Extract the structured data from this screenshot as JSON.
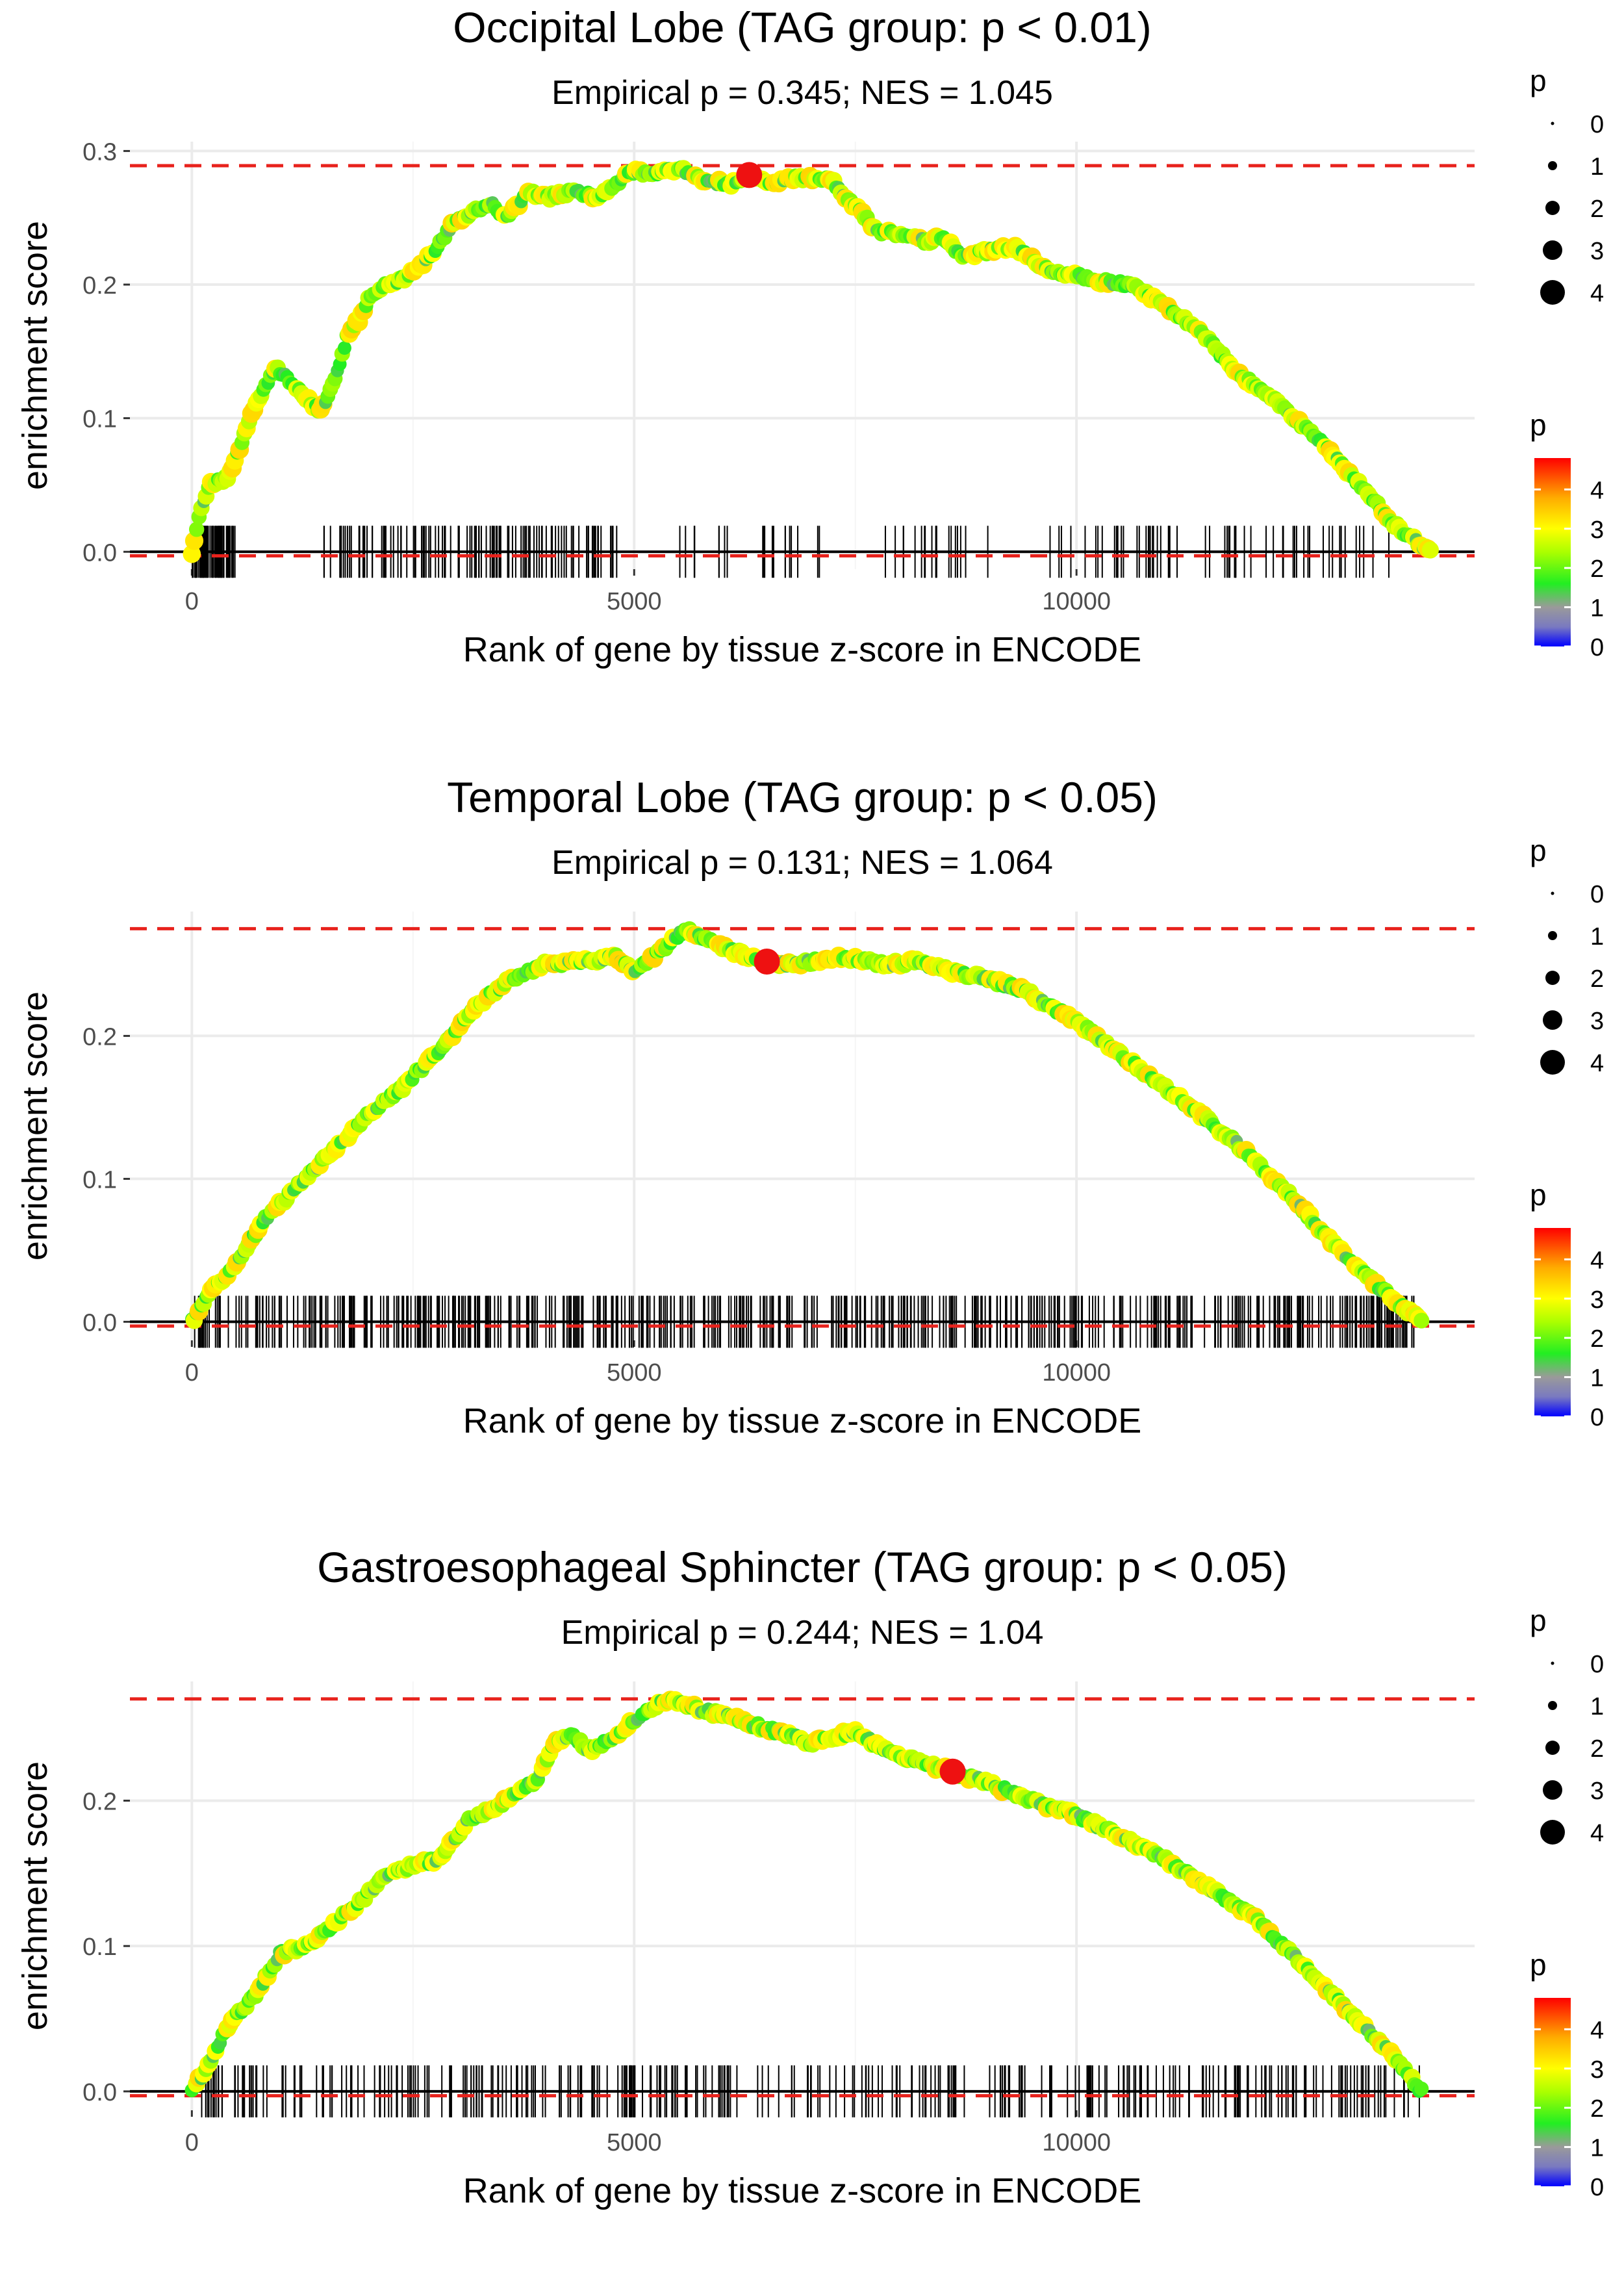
{
  "chart_data": [
    {
      "type": "line",
      "title": "Occipital Lobe (TAG group: p < 0.01)",
      "subtitle": "Empirical p = 0.345; NES = 1.045",
      "xlabel": "Rank of gene by tissue z-score in ENCODE",
      "ylabel": "enrichment score",
      "xlim": [
        -700,
        14500
      ],
      "ylim": [
        -0.013,
        0.307
      ],
      "x_ticks": [
        0,
        5000,
        10000
      ],
      "x_tick_labels": [
        "0",
        "5000",
        "10000"
      ],
      "y_ticks": [
        0.0,
        0.1,
        0.2,
        0.3
      ],
      "y_tick_labels": [
        "0.0",
        "0.1",
        "0.2",
        "0.3"
      ],
      "max_es": 0.289,
      "min_es": -0.003,
      "peak": {
        "x": 6300,
        "y": 0.282
      },
      "curve": [
        [
          0,
          0.0
        ],
        [
          100,
          0.03
        ],
        [
          200,
          0.05
        ],
        [
          400,
          0.055
        ],
        [
          500,
          0.07
        ],
        [
          650,
          0.1
        ],
        [
          800,
          0.12
        ],
        [
          950,
          0.138
        ],
        [
          1450,
          0.105
        ],
        [
          1600,
          0.125
        ],
        [
          1750,
          0.16
        ],
        [
          1900,
          0.175
        ],
        [
          2000,
          0.19
        ],
        [
          2200,
          0.2
        ],
        [
          2400,
          0.205
        ],
        [
          2600,
          0.215
        ],
        [
          2800,
          0.23
        ],
        [
          2950,
          0.245
        ],
        [
          3200,
          0.255
        ],
        [
          3400,
          0.26
        ],
        [
          3550,
          0.25
        ],
        [
          3700,
          0.26
        ],
        [
          3800,
          0.27
        ],
        [
          4000,
          0.265
        ],
        [
          4300,
          0.27
        ],
        [
          4600,
          0.265
        ],
        [
          4800,
          0.275
        ],
        [
          4950,
          0.285
        ],
        [
          5200,
          0.283
        ],
        [
          5500,
          0.287
        ],
        [
          5800,
          0.278
        ],
        [
          6100,
          0.275
        ],
        [
          6300,
          0.282
        ],
        [
          6600,
          0.276
        ],
        [
          6850,
          0.28
        ],
        [
          7200,
          0.28
        ],
        [
          7750,
          0.24
        ],
        [
          8050,
          0.238
        ],
        [
          8300,
          0.232
        ],
        [
          8500,
          0.236
        ],
        [
          8700,
          0.22
        ],
        [
          9000,
          0.225
        ],
        [
          9300,
          0.228
        ],
        [
          9700,
          0.21
        ],
        [
          10000,
          0.207
        ],
        [
          10300,
          0.202
        ],
        [
          10600,
          0.2
        ],
        [
          11000,
          0.185
        ],
        [
          11400,
          0.165
        ],
        [
          11800,
          0.135
        ],
        [
          12300,
          0.11
        ],
        [
          12800,
          0.08
        ],
        [
          13200,
          0.05
        ],
        [
          13600,
          0.02
        ],
        [
          14000,
          0.0
        ]
      ],
      "hit_ticks": [
        [
          0,
          500,
          60
        ],
        [
          1450,
          4850,
          110
        ],
        [
          5500,
          7200,
          20
        ],
        [
          7750,
          9000,
          20
        ],
        [
          9700,
          13800,
          60
        ]
      ],
      "size_legend": {
        "title": "p",
        "labels": [
          "0",
          "1",
          "2",
          "3",
          "4"
        ]
      },
      "color_legend": {
        "title": "p",
        "labels": [
          "4",
          "3",
          "2",
          "1",
          "0"
        ],
        "range": [
          0,
          4.8
        ]
      },
      "colors": {
        "reference": "#e8221c",
        "zero": "#000000",
        "line": "#b8b8b8",
        "peak": "#ee1111"
      }
    },
    {
      "type": "line",
      "title": "Temporal Lobe (TAG group: p < 0.05)",
      "subtitle": "Empirical p = 0.131; NES = 1.064",
      "xlabel": "Rank of gene by tissue z-score in ENCODE",
      "ylabel": "enrichment score",
      "xlim": [
        -700,
        14500
      ],
      "ylim": [
        -0.013,
        0.287
      ],
      "x_ticks": [
        0,
        5000,
        10000
      ],
      "x_tick_labels": [
        "0",
        "5000",
        "10000"
      ],
      "y_ticks": [
        0.0,
        0.1,
        0.2
      ],
      "y_tick_labels": [
        "0.0",
        "0.1",
        "0.2"
      ],
      "max_es": 0.275,
      "min_es": -0.003,
      "peak": {
        "x": 6500,
        "y": 0.252
      },
      "curve": [
        [
          0,
          0.0
        ],
        [
          200,
          0.02
        ],
        [
          500,
          0.04
        ],
        [
          800,
          0.07
        ],
        [
          1200,
          0.095
        ],
        [
          1600,
          0.12
        ],
        [
          2000,
          0.145
        ],
        [
          2400,
          0.165
        ],
        [
          2800,
          0.19
        ],
        [
          3200,
          0.22
        ],
        [
          3600,
          0.24
        ],
        [
          4000,
          0.25
        ],
        [
          4400,
          0.252
        ],
        [
          4800,
          0.255
        ],
        [
          5000,
          0.245
        ],
        [
          5300,
          0.26
        ],
        [
          5600,
          0.275
        ],
        [
          6000,
          0.262
        ],
        [
          6300,
          0.255
        ],
        [
          6600,
          0.25
        ],
        [
          7000,
          0.252
        ],
        [
          7400,
          0.255
        ],
        [
          7800,
          0.25
        ],
        [
          8200,
          0.252
        ],
        [
          8600,
          0.245
        ],
        [
          9000,
          0.24
        ],
        [
          9400,
          0.232
        ],
        [
          10000,
          0.21
        ],
        [
          10600,
          0.182
        ],
        [
          11200,
          0.155
        ],
        [
          11800,
          0.125
        ],
        [
          12400,
          0.09
        ],
        [
          12900,
          0.055
        ],
        [
          13400,
          0.025
        ],
        [
          13900,
          0.0
        ]
      ],
      "hit_ticks": [
        [
          0,
          13900,
          520
        ]
      ],
      "size_legend": {
        "title": "p",
        "labels": [
          "0",
          "1",
          "2",
          "3",
          "4"
        ]
      },
      "color_legend": {
        "title": "p",
        "labels": [
          "4",
          "3",
          "2",
          "1",
          "0"
        ],
        "range": [
          0,
          4.8
        ]
      },
      "colors": {
        "reference": "#e8221c",
        "zero": "#000000",
        "line": "#b8b8b8",
        "peak": "#ee1111"
      }
    },
    {
      "type": "line",
      "title": "Gastroesophageal Sphincter (TAG group: p < 0.05)",
      "subtitle": "Empirical p = 0.244; NES = 1.04",
      "xlabel": "Rank of gene by tissue z-score in ENCODE",
      "ylabel": "enrichment score",
      "xlim": [
        -700,
        14500
      ],
      "ylim": [
        -0.013,
        0.282
      ],
      "x_ticks": [
        0,
        5000,
        10000
      ],
      "x_tick_labels": [
        "0",
        "5000",
        "10000"
      ],
      "y_ticks": [
        0.0,
        0.1,
        0.2
      ],
      "y_tick_labels": [
        "0.0",
        "0.1",
        "0.2"
      ],
      "max_es": 0.27,
      "min_es": -0.003,
      "peak": {
        "x": 8600,
        "y": 0.22
      },
      "curve": [
        [
          0,
          0.0
        ],
        [
          200,
          0.02
        ],
        [
          400,
          0.045
        ],
        [
          700,
          0.065
        ],
        [
          1000,
          0.095
        ],
        [
          1300,
          0.1
        ],
        [
          1600,
          0.115
        ],
        [
          1900,
          0.13
        ],
        [
          2200,
          0.15
        ],
        [
          2500,
          0.155
        ],
        [
          2800,
          0.16
        ],
        [
          3100,
          0.185
        ],
        [
          3400,
          0.195
        ],
        [
          3700,
          0.205
        ],
        [
          3900,
          0.215
        ],
        [
          4100,
          0.24
        ],
        [
          4300,
          0.245
        ],
        [
          4500,
          0.235
        ],
        [
          4800,
          0.245
        ],
        [
          5100,
          0.26
        ],
        [
          5400,
          0.27
        ],
        [
          5800,
          0.262
        ],
        [
          6200,
          0.255
        ],
        [
          6600,
          0.248
        ],
        [
          7000,
          0.24
        ],
        [
          7500,
          0.248
        ],
        [
          7900,
          0.232
        ],
        [
          8300,
          0.225
        ],
        [
          8600,
          0.22
        ],
        [
          9000,
          0.212
        ],
        [
          9500,
          0.2
        ],
        [
          10000,
          0.19
        ],
        [
          10500,
          0.175
        ],
        [
          11000,
          0.16
        ],
        [
          11500,
          0.14
        ],
        [
          12000,
          0.12
        ],
        [
          12500,
          0.09
        ],
        [
          13000,
          0.06
        ],
        [
          13500,
          0.03
        ],
        [
          13900,
          0.0
        ]
      ],
      "hit_ticks": [
        [
          0,
          13900,
          330
        ]
      ],
      "size_legend": {
        "title": "p",
        "labels": [
          "0",
          "1",
          "2",
          "3",
          "4"
        ]
      },
      "color_legend": {
        "title": "p",
        "labels": [
          "4",
          "3",
          "2",
          "1",
          "0"
        ],
        "range": [
          0,
          4.8
        ]
      },
      "colors": {
        "reference": "#e8221c",
        "zero": "#000000",
        "line": "#b8b8b8",
        "peak": "#ee1111"
      }
    }
  ]
}
